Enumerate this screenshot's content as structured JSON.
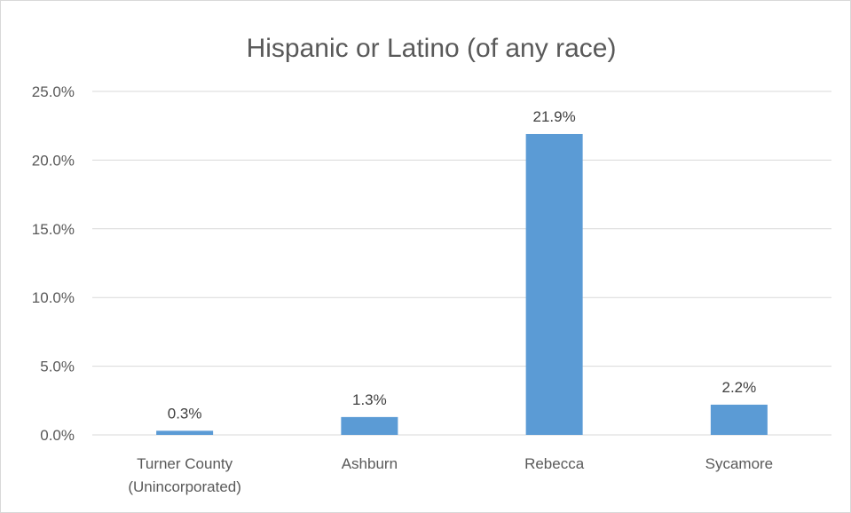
{
  "chart_data": {
    "type": "bar",
    "title": "Hispanic or Latino (of any race)",
    "categories": [
      [
        "Turner County",
        "(Unincorporated)"
      ],
      [
        "Ashburn"
      ],
      [
        "Rebecca"
      ],
      [
        "Sycamore"
      ]
    ],
    "values": [
      0.3,
      1.3,
      21.9,
      2.2
    ],
    "data_labels": [
      "0.3%",
      "1.3%",
      "21.9%",
      "2.2%"
    ],
    "ylim": [
      0,
      25
    ],
    "yticks": [
      0,
      5,
      10,
      15,
      20,
      25
    ],
    "ytick_labels": [
      "0.0%",
      "5.0%",
      "10.0%",
      "15.0%",
      "20.0%",
      "25.0%"
    ],
    "grid": true,
    "legend": "none",
    "bar_color": "#5b9bd5"
  }
}
